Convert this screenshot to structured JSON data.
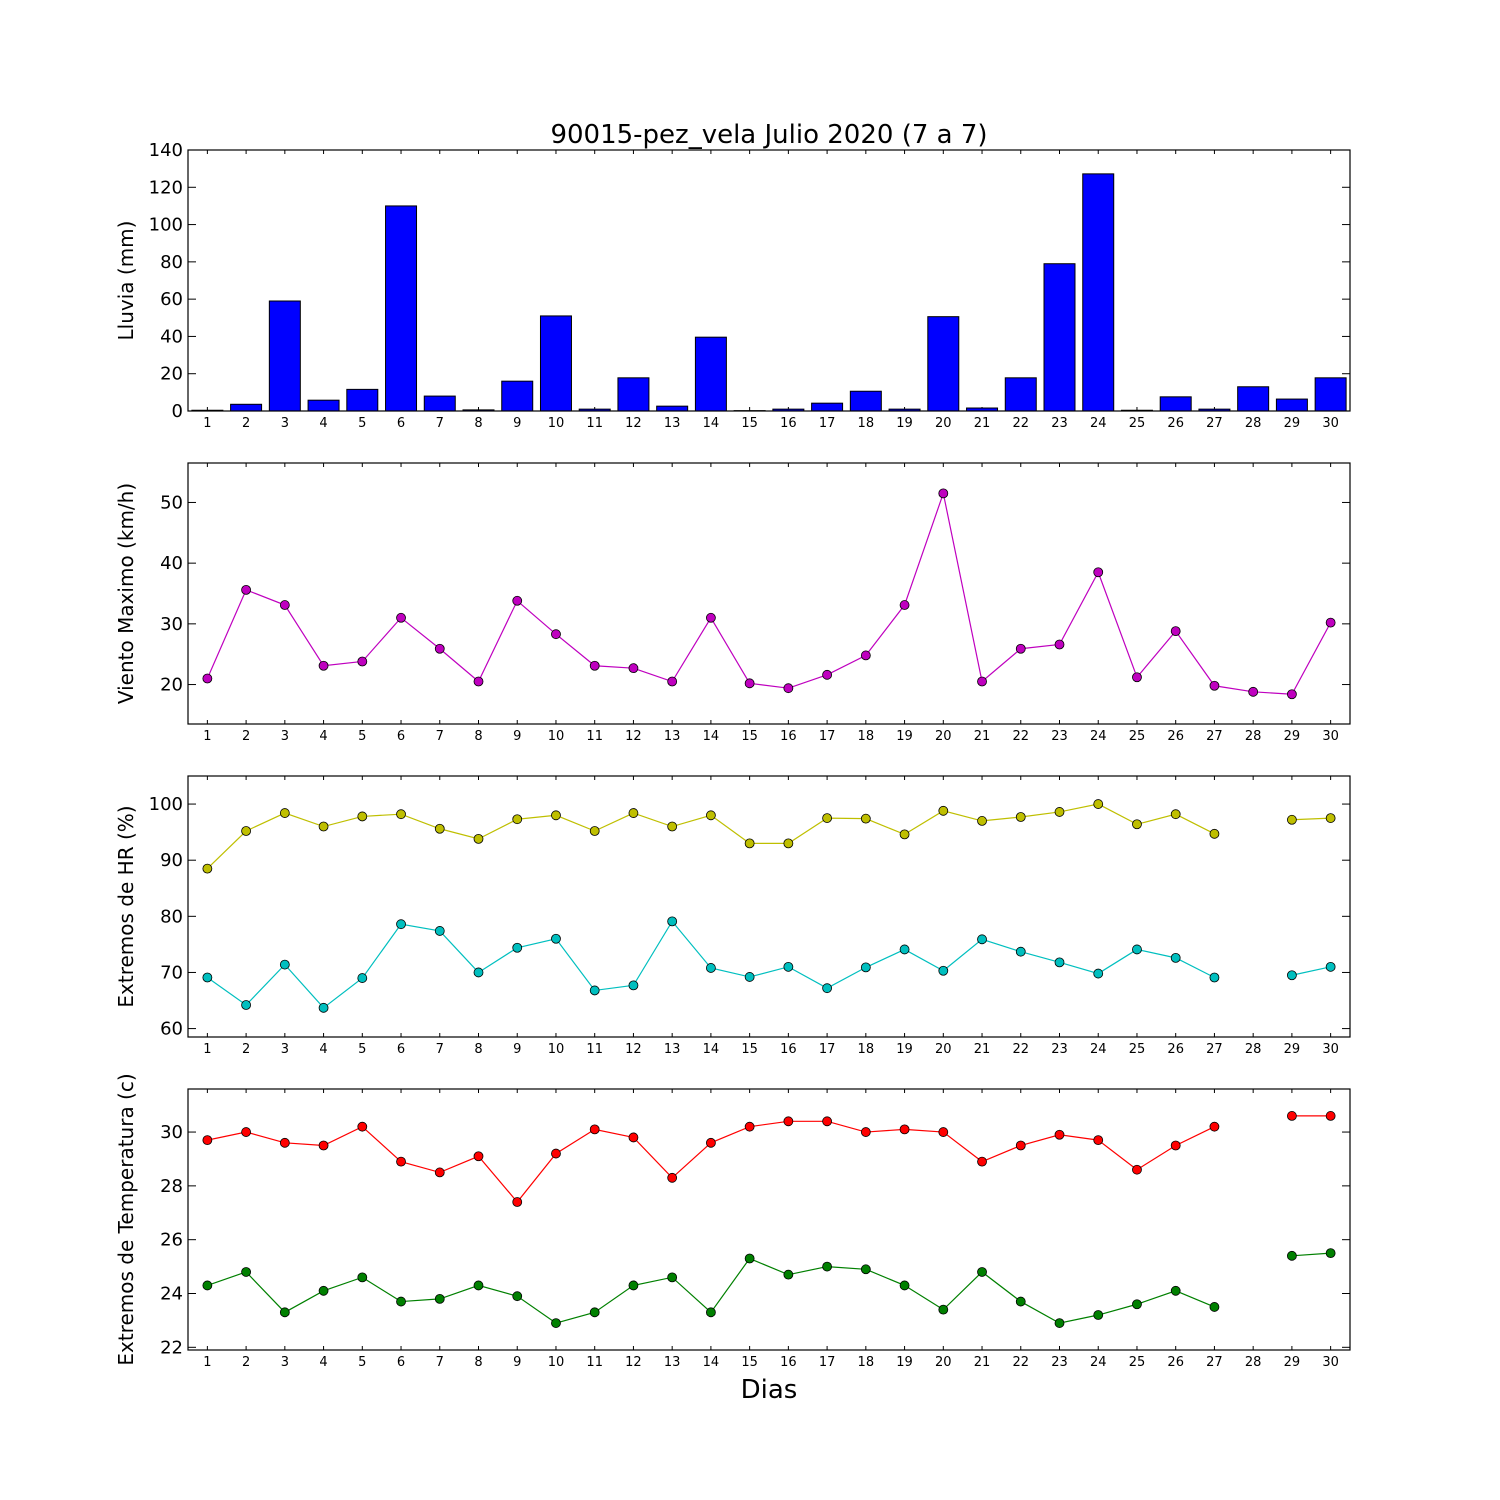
{
  "figure": {
    "title": "90015-pez_vela Julio 2020  (7 a 7)",
    "xlabel": "Dias"
  },
  "chart_data": [
    {
      "type": "bar",
      "ylabel": "Lluvia (mm)",
      "ylim": [
        0,
        140
      ],
      "yticks": [
        0,
        20,
        40,
        60,
        80,
        100,
        120,
        140
      ],
      "xlim": [
        0.5,
        30.5
      ],
      "categories": [
        1,
        2,
        3,
        4,
        5,
        6,
        7,
        8,
        9,
        10,
        11,
        12,
        13,
        14,
        15,
        16,
        17,
        18,
        19,
        20,
        21,
        22,
        23,
        24,
        25,
        26,
        27,
        28,
        29,
        30
      ],
      "series": [
        {
          "color": "#0000ff",
          "values": [
            0.4,
            3.6,
            59,
            5.8,
            11.6,
            110,
            8,
            0.6,
            16,
            51,
            1,
            17.8,
            2.6,
            39.6,
            0.2,
            1,
            4.2,
            10.6,
            1,
            50.6,
            1.6,
            17.8,
            79,
            127.2,
            0.4,
            7.6,
            1,
            13,
            6.4,
            17.8
          ]
        }
      ]
    },
    {
      "type": "line",
      "ylabel": "Viento Maximo (km/h)",
      "ylim": [
        13.5,
        56.5
      ],
      "yticks": [
        20,
        30,
        40,
        50
      ],
      "xlim": [
        0.5,
        30.5
      ],
      "x": [
        1,
        2,
        3,
        4,
        5,
        6,
        7,
        8,
        9,
        10,
        11,
        12,
        13,
        14,
        15,
        16,
        17,
        18,
        19,
        20,
        21,
        22,
        23,
        24,
        25,
        26,
        27,
        28,
        29,
        30
      ],
      "series": [
        {
          "color": "#bf00bf",
          "values": [
            21,
            35.6,
            33.1,
            23.1,
            23.8,
            31,
            25.9,
            20.5,
            33.8,
            28.3,
            23.1,
            22.7,
            20.5,
            31,
            20.2,
            19.4,
            21.6,
            24.8,
            33.1,
            51.5,
            20.5,
            25.9,
            26.6,
            38.5,
            21.2,
            28.8,
            19.8,
            18.8,
            18.4,
            30.2
          ]
        }
      ]
    },
    {
      "type": "line",
      "ylabel": "Extremos de HR (%)",
      "ylim": [
        58.5,
        105
      ],
      "yticks": [
        60,
        70,
        80,
        90,
        100
      ],
      "xlim": [
        0.5,
        30.5
      ],
      "x": [
        1,
        2,
        3,
        4,
        5,
        6,
        7,
        8,
        9,
        10,
        11,
        12,
        13,
        14,
        15,
        16,
        17,
        18,
        19,
        20,
        21,
        22,
        23,
        24,
        25,
        26,
        27,
        28,
        29,
        30
      ],
      "series": [
        {
          "color": "#bfbf00",
          "values": [
            88.5,
            95.2,
            98.4,
            96,
            97.8,
            98.2,
            95.6,
            93.8,
            97.3,
            98,
            95.2,
            98.4,
            96,
            98,
            93,
            93,
            97.5,
            97.4,
            94.6,
            98.8,
            97,
            97.7,
            98.6,
            100,
            96.4,
            98.2,
            94.7,
            null,
            97.2,
            97.5
          ]
        },
        {
          "color": "#00bfbf",
          "values": [
            69.1,
            64.2,
            71.4,
            63.7,
            69,
            78.6,
            77.4,
            70,
            74.4,
            76,
            66.8,
            67.7,
            79.1,
            70.8,
            69.2,
            71,
            67.2,
            70.9,
            74.1,
            70.3,
            75.9,
            73.7,
            71.8,
            69.8,
            74.1,
            72.6,
            69.1,
            null,
            69.5,
            71
          ]
        }
      ]
    },
    {
      "type": "line",
      "ylabel": "Extremos de Temperatura (c)",
      "ylim": [
        21.9,
        31.6
      ],
      "yticks": [
        22,
        24,
        26,
        28,
        30
      ],
      "xlim": [
        0.5,
        30.5
      ],
      "x": [
        1,
        2,
        3,
        4,
        5,
        6,
        7,
        8,
        9,
        10,
        11,
        12,
        13,
        14,
        15,
        16,
        17,
        18,
        19,
        20,
        21,
        22,
        23,
        24,
        25,
        26,
        27,
        28,
        29,
        30
      ],
      "series": [
        {
          "color": "#ff0000",
          "values": [
            29.7,
            30,
            29.6,
            29.5,
            30.2,
            28.9,
            28.5,
            29.1,
            27.4,
            29.2,
            30.1,
            29.8,
            28.3,
            29.6,
            30.2,
            30.4,
            30.4,
            30,
            30.1,
            30,
            28.9,
            29.5,
            29.9,
            29.7,
            28.6,
            29.5,
            30.2,
            null,
            30.6,
            30.6
          ]
        },
        {
          "color": "#008000",
          "values": [
            24.3,
            24.8,
            23.3,
            24.1,
            24.6,
            23.7,
            23.8,
            24.3,
            23.9,
            22.9,
            23.3,
            24.3,
            24.6,
            23.3,
            25.3,
            24.7,
            25,
            24.9,
            24.3,
            23.4,
            24.8,
            23.7,
            22.9,
            23.2,
            23.6,
            24.1,
            23.5,
            null,
            25.4,
            25.5
          ]
        }
      ]
    }
  ]
}
